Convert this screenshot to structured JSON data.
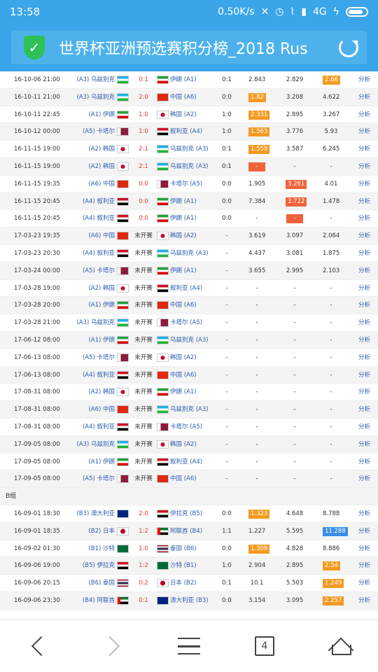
{
  "status_bar": {
    "time": "13:58",
    "speed": "0.50K/s",
    "network": "4G"
  },
  "header": {
    "title": "世界杯亚洲预选赛积分榜_2018 Rus"
  },
  "link_label": "分析",
  "groups": [
    {
      "label": "",
      "rows": [
        {
          "date": "16-10-06 21:00",
          "home": "(A3) 乌兹别克",
          "hflag": "uz",
          "score": "0:1",
          "away": "伊朗 (A1)",
          "aflag": "ir",
          "half": "0:1",
          "o1": "2.843",
          "o2": "2.829",
          "o3": "2.66",
          "hl": [
            0,
            0,
            1
          ],
          "hc": "o"
        },
        {
          "date": "16-10-11 21:00",
          "home": "(A3) 乌兹别克",
          "hflag": "uz",
          "score": "2:0",
          "away": "中国 (A6)",
          "aflag": "cn",
          "half": "0:0",
          "o1": "1.82",
          "o2": "3.208",
          "o3": "4.622",
          "hl": [
            1,
            0,
            0
          ],
          "hc": "o"
        },
        {
          "date": "16-10-11 22:45",
          "home": "(A1) 伊朗",
          "hflag": "ir",
          "score": "1:0",
          "away": "韩国 (A2)",
          "aflag": "kr",
          "half": "1:0",
          "o1": "2.331",
          "o2": "2.895",
          "o3": "3.267",
          "hl": [
            1,
            0,
            0
          ],
          "hc": "o"
        },
        {
          "date": "16-10-12 00:00",
          "home": "(A5) 卡塔尔",
          "hflag": "qa",
          "score": "1:0",
          "away": "叙利亚 (A4)",
          "aflag": "sy",
          "half": "1:0",
          "o1": "1.563",
          "o2": "3.776",
          "o3": "5.93",
          "hl": [
            1,
            0,
            0
          ],
          "hc": "o"
        },
        {
          "date": "16-11-15 19:00",
          "home": "(A2) 韩国",
          "hflag": "kr",
          "score": "2:1",
          "away": "乌兹别克 (A3)",
          "aflag": "uz",
          "half": "0:1",
          "o1": "1.559",
          "o2": "3.587",
          "o3": "6.245",
          "hl": [
            1,
            0,
            0
          ],
          "hc": "o"
        },
        {
          "date": "16-11-15 19:00",
          "home": "(A2) 韩国",
          "hflag": "kr",
          "score": "2:1",
          "away": "乌兹别克 (A3)",
          "aflag": "uz",
          "half": "0:1",
          "o1": "-",
          "o2": "-",
          "o3": "-",
          "hl": [
            1,
            0,
            0
          ],
          "hc": "r"
        },
        {
          "date": "16-11-15 19:35",
          "home": "(A6) 中国",
          "hflag": "cn",
          "score": "0:0",
          "away": "卡塔尔 (A5)",
          "aflag": "qa",
          "half": "0:0",
          "o1": "1.905",
          "o2": "3.261",
          "o3": "4.01",
          "hl": [
            0,
            1,
            0
          ],
          "hc": "r"
        },
        {
          "date": "16-11-15 20:45",
          "home": "(A4) 叙利亚",
          "hflag": "sy",
          "score": "0:0",
          "away": "伊朗 (A1)",
          "aflag": "ir",
          "half": "0:0",
          "o1": "7.384",
          "o2": "3.722",
          "o3": "1.478",
          "hl": [
            0,
            1,
            0
          ],
          "hc": "r"
        },
        {
          "date": "16-11-15 20:45",
          "home": "(A4) 叙利亚",
          "hflag": "sy",
          "score": "0:0",
          "away": "伊朗 (A1)",
          "aflag": "ir",
          "half": "0:0",
          "o1": "-",
          "o2": "-",
          "o3": "-",
          "hl": [
            0,
            1,
            0
          ],
          "hc": "r"
        },
        {
          "date": "17-03-23 19:35",
          "home": "(A6) 中国",
          "hflag": "cn",
          "score": "未开赛",
          "away": "韩国 (A2)",
          "aflag": "kr",
          "half": "-",
          "o1": "3.619",
          "o2": "3.097",
          "o3": "2.064",
          "hl": [
            0,
            0,
            0
          ],
          "hc": "o"
        },
        {
          "date": "17-03-23 20:30",
          "home": "(A4) 叙利亚",
          "hflag": "sy",
          "score": "未开赛",
          "away": "乌兹别克 (A3)",
          "aflag": "uz",
          "half": "-",
          "o1": "4.437",
          "o2": "3.081",
          "o3": "1.875",
          "hl": [
            0,
            0,
            0
          ],
          "hc": "o"
        },
        {
          "date": "17-03-24 00:00",
          "home": "(A5) 卡塔尔",
          "hflag": "qa",
          "score": "未开赛",
          "away": "伊朗 (A1)",
          "aflag": "ir",
          "half": "-",
          "o1": "3.655",
          "o2": "2.995",
          "o3": "2.103",
          "hl": [
            0,
            0,
            0
          ],
          "hc": "o"
        },
        {
          "date": "17-03-28 19:00",
          "home": "(A2) 韩国",
          "hflag": "kr",
          "score": "未开赛",
          "away": "叙利亚 (A4)",
          "aflag": "sy",
          "half": "-",
          "o1": "-",
          "o2": "-",
          "o3": "-",
          "hl": [
            0,
            0,
            0
          ],
          "hc": "o"
        },
        {
          "date": "17-03-28 20:00",
          "home": "(A1) 伊朗",
          "hflag": "ir",
          "score": "未开赛",
          "away": "中国 (A6)",
          "aflag": "cn",
          "half": "-",
          "o1": "-",
          "o2": "-",
          "o3": "-",
          "hl": [
            0,
            0,
            0
          ],
          "hc": "o"
        },
        {
          "date": "17-03-28 21:00",
          "home": "(A3) 乌兹别克",
          "hflag": "uz",
          "score": "未开赛",
          "away": "卡塔尔 (A5)",
          "aflag": "qa",
          "half": "-",
          "o1": "-",
          "o2": "-",
          "o3": "-",
          "hl": [
            0,
            0,
            0
          ],
          "hc": "o"
        },
        {
          "date": "17-06-12 08:00",
          "home": "(A1) 伊朗",
          "hflag": "ir",
          "score": "未开赛",
          "away": "乌兹别克 (A3)",
          "aflag": "uz",
          "half": "-",
          "o1": "-",
          "o2": "-",
          "o3": "-",
          "hl": [
            0,
            0,
            0
          ],
          "hc": "o"
        },
        {
          "date": "17-06-13 08:00",
          "home": "(A5) 卡塔尔",
          "hflag": "qa",
          "score": "未开赛",
          "away": "韩国 (A2)",
          "aflag": "kr",
          "half": "-",
          "o1": "-",
          "o2": "-",
          "o3": "-",
          "hl": [
            0,
            0,
            0
          ],
          "hc": "o"
        },
        {
          "date": "17-06-13 08:00",
          "home": "(A4) 叙利亚",
          "hflag": "sy",
          "score": "未开赛",
          "away": "中国 (A6)",
          "aflag": "cn",
          "half": "-",
          "o1": "-",
          "o2": "-",
          "o3": "-",
          "hl": [
            0,
            0,
            0
          ],
          "hc": "o"
        },
        {
          "date": "17-08-31 08:00",
          "home": "(A2) 韩国",
          "hflag": "kr",
          "score": "未开赛",
          "away": "伊朗 (A1)",
          "aflag": "ir",
          "half": "-",
          "o1": "-",
          "o2": "-",
          "o3": "-",
          "hl": [
            0,
            0,
            0
          ],
          "hc": "o"
        },
        {
          "date": "17-08-31 08:00",
          "home": "(A6) 中国",
          "hflag": "cn",
          "score": "未开赛",
          "away": "乌兹别克 (A3)",
          "aflag": "uz",
          "half": "-",
          "o1": "-",
          "o2": "-",
          "o3": "-",
          "hl": [
            0,
            0,
            0
          ],
          "hc": "o"
        },
        {
          "date": "17-08-31 08:00",
          "home": "(A4) 叙利亚",
          "hflag": "sy",
          "score": "未开赛",
          "away": "卡塔尔 (A5)",
          "aflag": "qa",
          "half": "-",
          "o1": "-",
          "o2": "-",
          "o3": "-",
          "hl": [
            0,
            0,
            0
          ],
          "hc": "o"
        },
        {
          "date": "17-09-05 08:00",
          "home": "(A3) 乌兹别克",
          "hflag": "uz",
          "score": "未开赛",
          "away": "韩国 (A2)",
          "aflag": "kr",
          "half": "-",
          "o1": "-",
          "o2": "-",
          "o3": "-",
          "hl": [
            0,
            0,
            0
          ],
          "hc": "o"
        },
        {
          "date": "17-09-05 08:00",
          "home": "(A1) 伊朗",
          "hflag": "ir",
          "score": "未开赛",
          "away": "叙利亚 (A4)",
          "aflag": "sy",
          "half": "-",
          "o1": "-",
          "o2": "-",
          "o3": "-",
          "hl": [
            0,
            0,
            0
          ],
          "hc": "o"
        },
        {
          "date": "17-09-05 08:00",
          "home": "(A5) 卡塔尔",
          "hflag": "qa",
          "score": "未开赛",
          "away": "中国 (A6)",
          "aflag": "cn",
          "half": "-",
          "o1": "-",
          "o2": "-",
          "o3": "-",
          "hl": [
            0,
            0,
            0
          ],
          "hc": "o"
        }
      ]
    },
    {
      "label": "B组",
      "rows": [
        {
          "date": "16-09-01 18:30",
          "home": "(B3) 澳大利亚",
          "hflag": "au",
          "score": "2:0",
          "away": "伊拉克 (B5)",
          "aflag": "iq",
          "half": "0:0",
          "o1": "1.323",
          "o2": "4.648",
          "o3": "8.788",
          "hl": [
            1,
            0,
            0
          ],
          "hc": "o"
        },
        {
          "date": "16-09-01 18:35",
          "home": "(B2) 日本",
          "hflag": "jp",
          "score": "1:2",
          "away": "阿联酋 (B4)",
          "aflag": "ae",
          "half": "1:1",
          "o1": "1.227",
          "o2": "5.595",
          "o3": "11.288",
          "hl": [
            0,
            0,
            1
          ],
          "hc": "b"
        },
        {
          "date": "16-09-02 01:30",
          "home": "(B1) 沙特",
          "hflag": "sa",
          "score": "1:0",
          "away": "泰国 (B6)",
          "aflag": "th",
          "half": "0:0",
          "o1": "1.309",
          "o2": "4.828",
          "o3": "8.886",
          "hl": [
            1,
            0,
            0
          ],
          "hc": "o"
        },
        {
          "date": "16-09-06 19:00",
          "home": "(B5) 伊拉克",
          "hflag": "iq",
          "score": "1:2",
          "away": "沙特 (B1)",
          "aflag": "sa",
          "half": "1:0",
          "o1": "2.904",
          "o2": "2.895",
          "o3": "2.54",
          "hl": [
            0,
            0,
            1
          ],
          "hc": "o"
        },
        {
          "date": "16-09-06 20:15",
          "home": "(B6) 泰国",
          "hflag": "th",
          "score": "0:2",
          "away": "日本 (B2)",
          "aflag": "jp",
          "half": "0:1",
          "o1": "10.1",
          "o2": "5.503",
          "o3": "1.249",
          "hl": [
            0,
            0,
            1
          ],
          "hc": "o"
        },
        {
          "date": "16-09-06 23:30",
          "home": "(B4) 阿联酋",
          "hflag": "ae",
          "score": "0:1",
          "away": "澳大利亚 (B3)",
          "aflag": "au",
          "half": "0:0",
          "o1": "3.154",
          "o2": "3.095",
          "o3": "2.257",
          "hl": [
            0,
            0,
            1
          ],
          "hc": "o"
        }
      ]
    }
  ],
  "bottom_nav": {
    "tab_count": "4"
  }
}
